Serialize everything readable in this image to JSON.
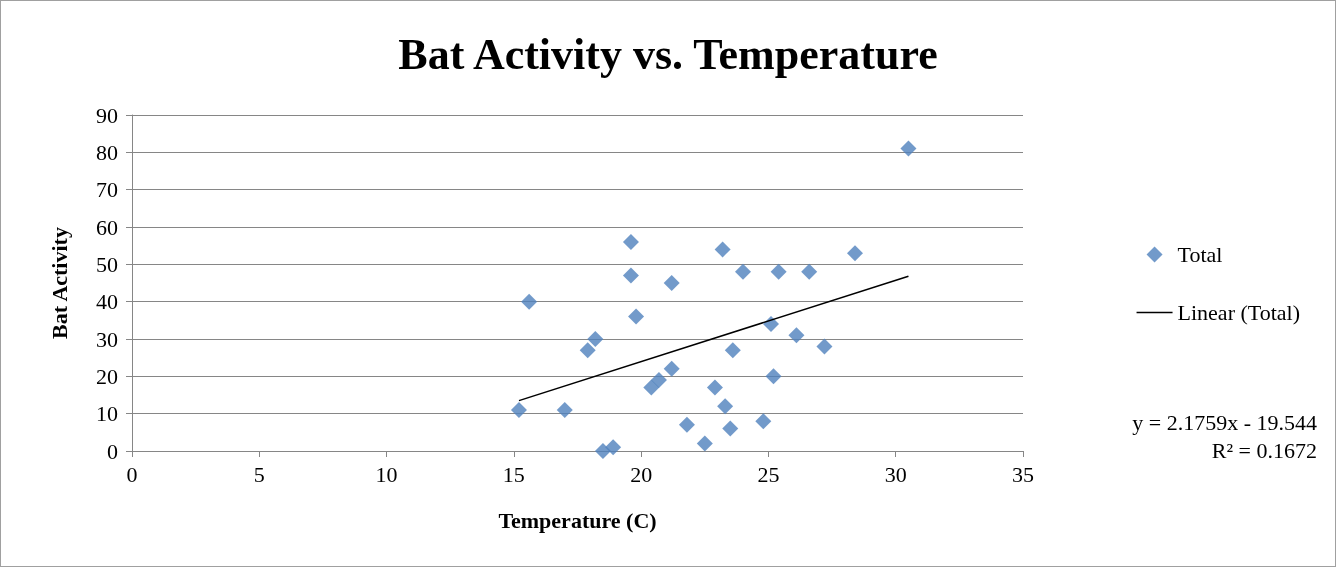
{
  "chart_data": {
    "type": "scatter",
    "title": "Bat Activity vs. Temperature",
    "xlabel": "Temperature (C)",
    "ylabel": "Bat Activity",
    "x": [
      15.2,
      15.6,
      17.0,
      17.9,
      18.2,
      18.5,
      18.9,
      19.6,
      19.6,
      19.8,
      20.4,
      20.7,
      21.2,
      21.2,
      21.8,
      22.5,
      22.9,
      23.2,
      23.3,
      23.5,
      23.6,
      24.0,
      24.8,
      25.1,
      25.2,
      25.4,
      26.1,
      26.6,
      27.2,
      28.4,
      30.5
    ],
    "series": [
      {
        "name": "Total",
        "color": "#4f81bd",
        "marker": "diamond",
        "values": [
          11,
          40,
          11,
          27,
          30,
          0,
          1,
          56,
          47,
          36,
          17,
          19,
          22,
          45,
          7,
          2,
          17,
          54,
          12,
          6,
          27,
          48,
          8,
          34,
          20,
          48,
          31,
          48,
          28,
          53,
          81
        ]
      },
      {
        "name": "Linear (Total)",
        "type": "line",
        "color": "#000000",
        "marker": "none",
        "x": [
          15.2,
          30.5
        ],
        "values": [
          13.5,
          46.8
        ]
      }
    ],
    "xlim": [
      0,
      35
    ],
    "xticks": [
      0,
      5,
      10,
      15,
      20,
      25,
      30,
      35
    ],
    "ylim": [
      0,
      90
    ],
    "yticks": [
      0,
      10,
      20,
      30,
      40,
      50,
      60,
      70,
      80,
      90
    ],
    "grid": "y",
    "legend": "right",
    "annotations": [
      "y = 2.1759x - 19.544",
      "R² = 0.1672"
    ]
  }
}
